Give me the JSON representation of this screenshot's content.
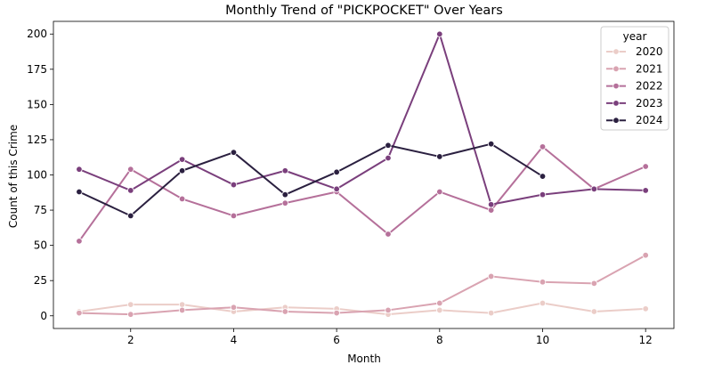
{
  "chart_data": {
    "type": "line",
    "title": "Monthly Trend of \"PICKPOCKET\" Over Years",
    "xlabel": "Month",
    "ylabel": "Count of this Crime",
    "xlim": [
      0.5,
      12.55
    ],
    "ylim": [
      -9,
      209
    ],
    "xticks": [
      2,
      4,
      6,
      8,
      10,
      12
    ],
    "yticks": [
      0,
      25,
      50,
      75,
      100,
      125,
      150,
      175,
      200
    ],
    "legend": {
      "title": "year",
      "position": "top-right"
    },
    "markers": true,
    "series": [
      {
        "name": "2020",
        "color": "#ebcdc8",
        "x": [
          1,
          2,
          3,
          4,
          5,
          6,
          7,
          8,
          9,
          10,
          11,
          12
        ],
        "values": [
          3,
          8,
          8,
          3,
          6,
          5,
          1,
          4,
          2,
          9,
          3,
          5
        ]
      },
      {
        "name": "2021",
        "color": "#d9a3b1",
        "x": [
          1,
          2,
          3,
          4,
          5,
          6,
          7,
          8,
          9,
          10,
          11,
          12
        ],
        "values": [
          2,
          1,
          4,
          6,
          3,
          2,
          4,
          9,
          28,
          24,
          23,
          43
        ]
      },
      {
        "name": "2022",
        "color": "#b5709a",
        "x": [
          1,
          2,
          3,
          4,
          5,
          6,
          7,
          8,
          9,
          10,
          11,
          12
        ],
        "values": [
          53,
          104,
          83,
          71,
          80,
          88,
          58,
          88,
          75,
          120,
          90,
          106
        ]
      },
      {
        "name": "2023",
        "color": "#7a3f7c",
        "x": [
          1,
          2,
          3,
          4,
          5,
          6,
          7,
          8,
          9,
          10,
          11,
          12
        ],
        "values": [
          104,
          89,
          111,
          93,
          103,
          90,
          112,
          200,
          79,
          86,
          90,
          89
        ]
      },
      {
        "name": "2024",
        "color": "#2b2040",
        "x": [
          1,
          2,
          3,
          4,
          5,
          6,
          7,
          8,
          9,
          10
        ],
        "values": [
          88,
          71,
          103,
          116,
          86,
          102,
          121,
          113,
          122,
          99
        ]
      }
    ]
  }
}
